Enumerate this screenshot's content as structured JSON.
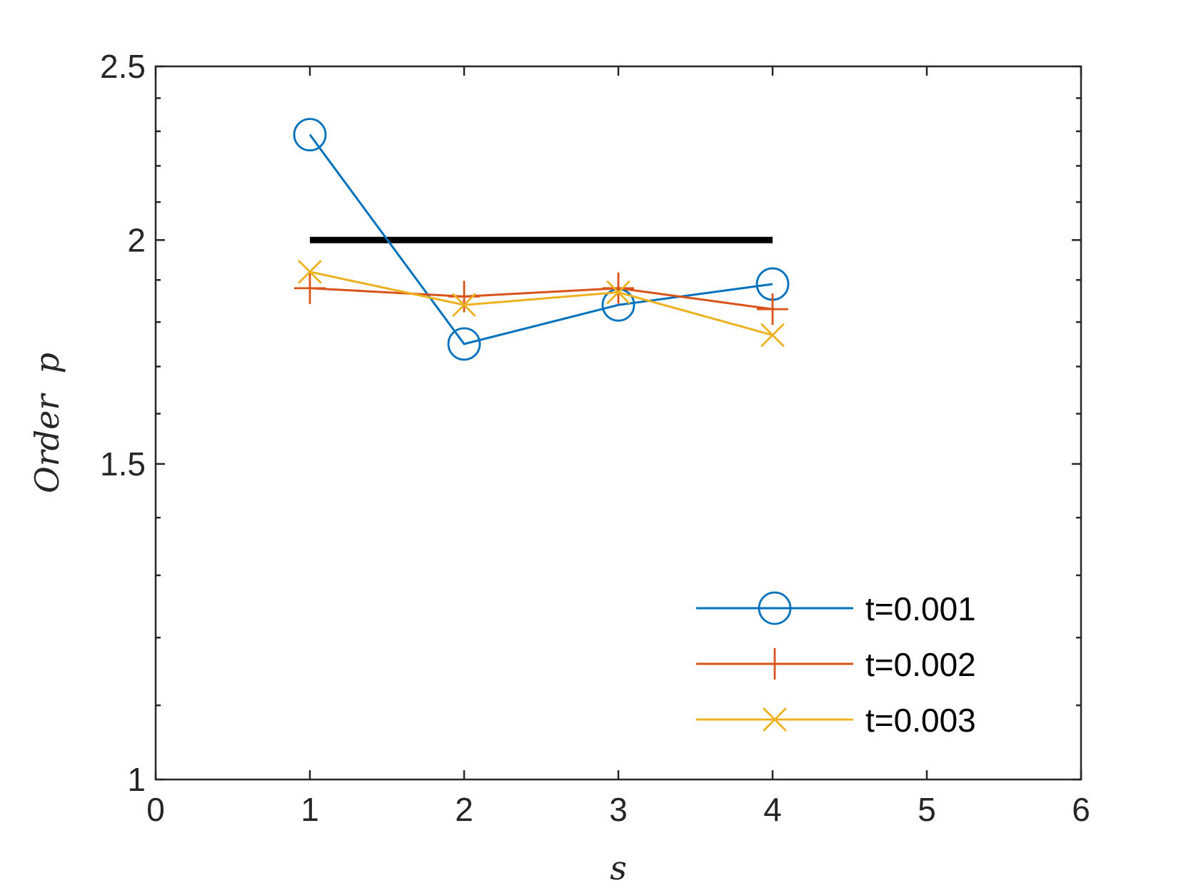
{
  "chart_data": {
    "type": "line",
    "xlabel": "s",
    "ylabel": "Order  p",
    "xlim": [
      0,
      6
    ],
    "ylim": [
      1,
      2.5
    ],
    "x_ticks": [
      0,
      1,
      2,
      3,
      4,
      5,
      6
    ],
    "x_tick_labels": [
      "0",
      "1",
      "2",
      "3",
      "4",
      "5",
      "6"
    ],
    "y_ticks": [
      1,
      1.5,
      2,
      2.5
    ],
    "y_tick_labels": [
      "1",
      "1.5",
      "2",
      "2.5"
    ],
    "y_scale": "log",
    "grid": false,
    "legend_position": "bottom-right",
    "reference_line": {
      "x": [
        1,
        4
      ],
      "y": [
        2,
        2
      ],
      "color": "#000000"
    },
    "series": [
      {
        "name": "t=0.001",
        "x": [
          1,
          2,
          3,
          4
        ],
        "y": [
          2.29,
          1.75,
          1.84,
          1.89
        ],
        "color": "#0072BD",
        "marker": "circle"
      },
      {
        "name": "t=0.002",
        "x": [
          1,
          2,
          3,
          4
        ],
        "y": [
          1.88,
          1.86,
          1.88,
          1.83
        ],
        "color": "#D95319",
        "marker": "plus"
      },
      {
        "name": "t=0.003",
        "x": [
          1,
          2,
          3,
          4
        ],
        "y": [
          1.92,
          1.84,
          1.87,
          1.77
        ],
        "color": "#EDB120",
        "marker": "cross"
      }
    ]
  }
}
